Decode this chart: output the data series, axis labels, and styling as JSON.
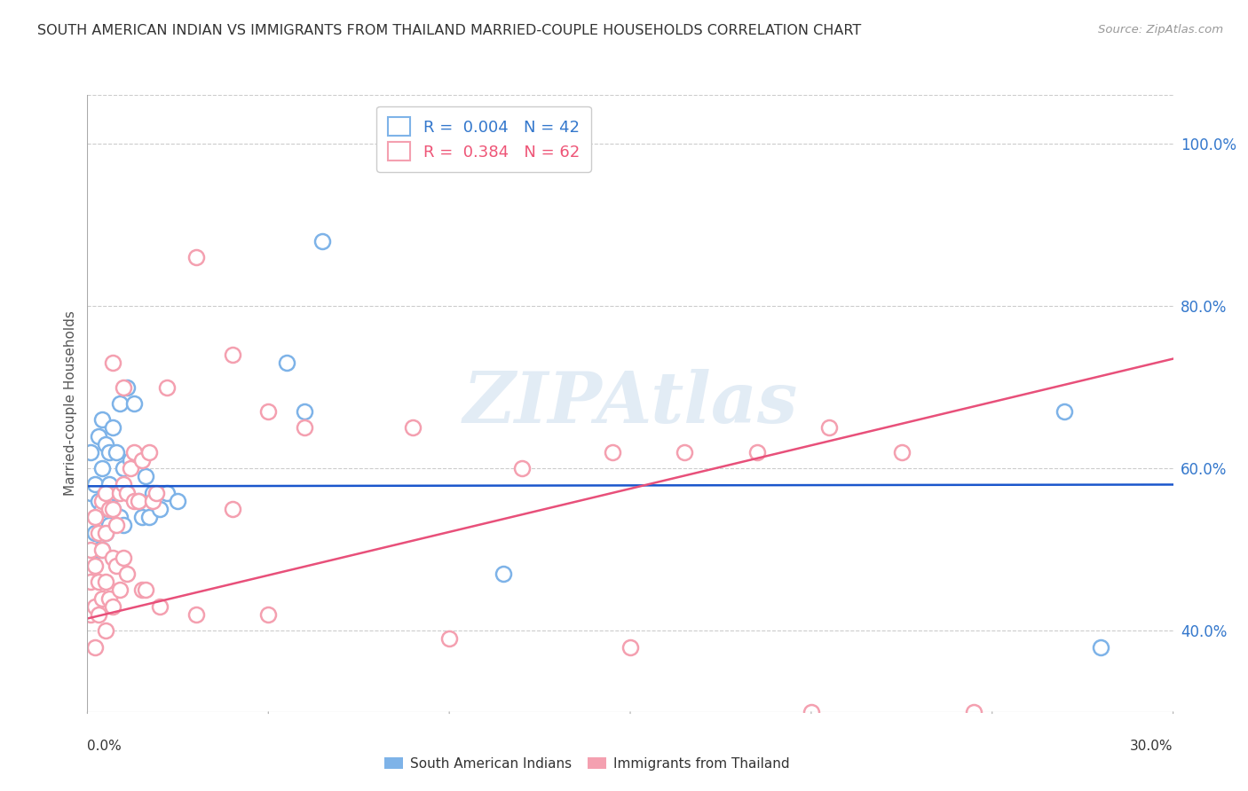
{
  "title": "SOUTH AMERICAN INDIAN VS IMMIGRANTS FROM THAILAND MARRIED-COUPLE HOUSEHOLDS CORRELATION CHART",
  "source": "Source: ZipAtlas.com",
  "ylabel": "Married-couple Households",
  "yaxis_labels": [
    "100.0%",
    "80.0%",
    "60.0%",
    "40.0%"
  ],
  "yaxis_values": [
    1.0,
    0.8,
    0.6,
    0.4
  ],
  "legend_blue_r": "0.004",
  "legend_blue_n": "42",
  "legend_pink_r": "0.384",
  "legend_pink_n": "62",
  "legend_label_blue": "South American Indians",
  "legend_label_pink": "Immigrants from Thailand",
  "blue_color": "#7EB3E8",
  "pink_color": "#F4A0B0",
  "line_blue_color": "#1A56CC",
  "line_pink_color": "#E8507A",
  "watermark": "ZIPAtlas",
  "xlim": [
    0.0,
    0.3
  ],
  "ylim": [
    0.3,
    1.06
  ],
  "blue_x": [
    0.001,
    0.001,
    0.002,
    0.002,
    0.003,
    0.003,
    0.003,
    0.004,
    0.004,
    0.004,
    0.004,
    0.005,
    0.005,
    0.005,
    0.006,
    0.006,
    0.006,
    0.007,
    0.007,
    0.008,
    0.008,
    0.009,
    0.009,
    0.01,
    0.01,
    0.011,
    0.012,
    0.013,
    0.014,
    0.015,
    0.016,
    0.017,
    0.018,
    0.02,
    0.022,
    0.025,
    0.055,
    0.06,
    0.065,
    0.115,
    0.27,
    0.28
  ],
  "blue_y": [
    0.57,
    0.62,
    0.52,
    0.58,
    0.5,
    0.56,
    0.64,
    0.5,
    0.55,
    0.6,
    0.66,
    0.52,
    0.57,
    0.63,
    0.53,
    0.58,
    0.62,
    0.55,
    0.65,
    0.57,
    0.62,
    0.54,
    0.68,
    0.53,
    0.6,
    0.7,
    0.61,
    0.68,
    0.56,
    0.54,
    0.59,
    0.54,
    0.57,
    0.55,
    0.57,
    0.56,
    0.73,
    0.67,
    0.88,
    0.47,
    0.67,
    0.38
  ],
  "pink_x": [
    0.001,
    0.001,
    0.001,
    0.002,
    0.002,
    0.002,
    0.002,
    0.003,
    0.003,
    0.003,
    0.004,
    0.004,
    0.004,
    0.005,
    0.005,
    0.005,
    0.005,
    0.006,
    0.006,
    0.007,
    0.007,
    0.007,
    0.008,
    0.008,
    0.009,
    0.009,
    0.01,
    0.01,
    0.011,
    0.011,
    0.012,
    0.013,
    0.013,
    0.014,
    0.015,
    0.015,
    0.016,
    0.017,
    0.018,
    0.019,
    0.02,
    0.022,
    0.03,
    0.04,
    0.05,
    0.06,
    0.09,
    0.12,
    0.145,
    0.165,
    0.185,
    0.205,
    0.225,
    0.245,
    0.03,
    0.04,
    0.05,
    0.1,
    0.15,
    0.2,
    0.007,
    0.01
  ],
  "pink_y": [
    0.46,
    0.42,
    0.5,
    0.38,
    0.43,
    0.48,
    0.54,
    0.42,
    0.46,
    0.52,
    0.44,
    0.5,
    0.56,
    0.4,
    0.46,
    0.52,
    0.57,
    0.44,
    0.55,
    0.43,
    0.49,
    0.55,
    0.48,
    0.53,
    0.45,
    0.57,
    0.49,
    0.58,
    0.47,
    0.57,
    0.6,
    0.56,
    0.62,
    0.56,
    0.45,
    0.61,
    0.45,
    0.62,
    0.56,
    0.57,
    0.43,
    0.7,
    0.86,
    0.74,
    0.67,
    0.65,
    0.65,
    0.6,
    0.62,
    0.62,
    0.62,
    0.65,
    0.62,
    0.3,
    0.42,
    0.55,
    0.42,
    0.39,
    0.38,
    0.3,
    0.73,
    0.7
  ],
  "blue_trendline_x": [
    0.0,
    0.3
  ],
  "blue_trendline_y": [
    0.578,
    0.58
  ],
  "pink_trendline_x": [
    0.0,
    0.3
  ],
  "pink_trendline_y": [
    0.415,
    0.735
  ]
}
